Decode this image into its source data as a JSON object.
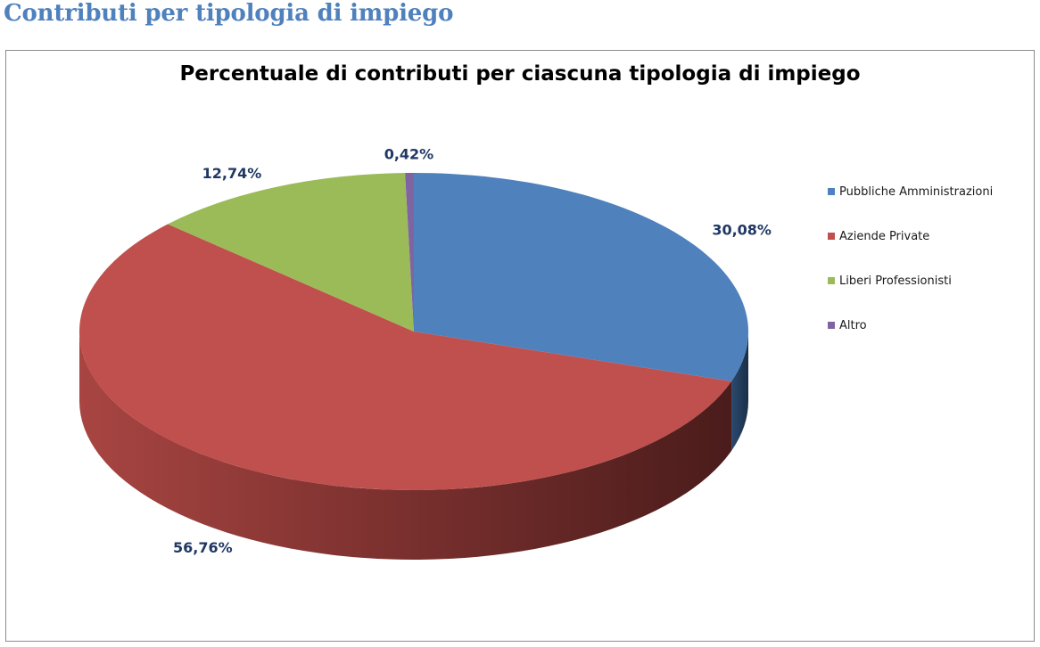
{
  "heading": "Contributi per tipologia di impiego",
  "chart_data": {
    "type": "pie",
    "style": "3d",
    "title": "Percentuale di contributi per ciascuna tipologia di impiego",
    "categories": [
      "Pubbliche Amministrazioni",
      "Aziende Private",
      "Liberi Professionisti",
      "Altro"
    ],
    "values": [
      30.08,
      56.76,
      12.74,
      0.42
    ],
    "data_labels": [
      "30,08%",
      "56,76%",
      "12,74%",
      "0,42%"
    ],
    "colors": [
      "#4f81bd",
      "#c0504d",
      "#9bbb59",
      "#8064a2"
    ],
    "legend_position": "right"
  }
}
